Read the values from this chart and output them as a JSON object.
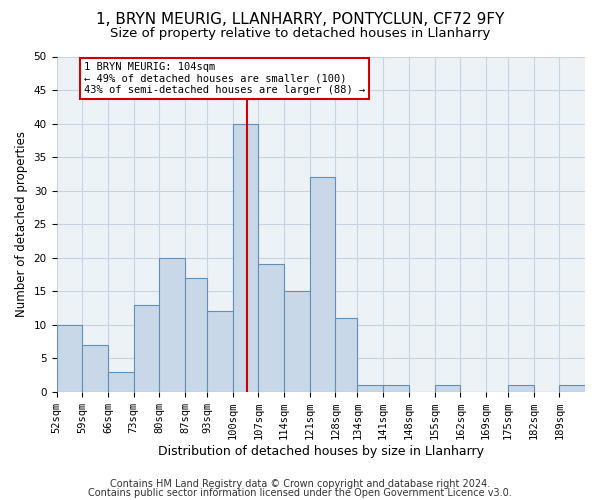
{
  "title1": "1, BRYN MEURIG, LLANHARRY, PONTYCLUN, CF72 9FY",
  "title2": "Size of property relative to detached houses in Llanharry",
  "xlabel": "Distribution of detached houses by size in Llanharry",
  "ylabel": "Number of detached properties",
  "footer1": "Contains HM Land Registry data © Crown copyright and database right 2024.",
  "footer2": "Contains public sector information licensed under the Open Government Licence v3.0.",
  "bin_edges": [
    52,
    59,
    66,
    73,
    80,
    87,
    93,
    100,
    107,
    114,
    121,
    128,
    134,
    141,
    148,
    155,
    162,
    169,
    175,
    182,
    189,
    196
  ],
  "bin_labels": [
    "52sqm",
    "59sqm",
    "66sqm",
    "73sqm",
    "80sqm",
    "87sqm",
    "93sqm",
    "100sqm",
    "107sqm",
    "114sqm",
    "121sqm",
    "128sqm",
    "134sqm",
    "141sqm",
    "148sqm",
    "155sqm",
    "162sqm",
    "169sqm",
    "175sqm",
    "182sqm",
    "189sqm"
  ],
  "values": [
    10,
    7,
    3,
    13,
    20,
    17,
    12,
    40,
    19,
    15,
    32,
    11,
    1,
    1,
    0,
    1,
    0,
    0,
    1,
    0,
    1
  ],
  "bar_color": "#c8d8e8",
  "bar_edge_color": "#6090b8",
  "vline_x_label": "100sqm",
  "property_label": "104sqm",
  "annotation_text": "1 BRYN MEURIG: 104sqm\n← 49% of detached houses are smaller (100)\n43% of semi-detached houses are larger (88) →",
  "annotation_box_color": "#ffffff",
  "annotation_box_edge": "#cc0000",
  "vline_color": "#cc0000",
  "ylim": [
    0,
    50
  ],
  "grid_color": "#c8d4e0",
  "bg_color": "#edf2f7",
  "title1_fontsize": 11,
  "title2_fontsize": 9.5,
  "ylabel_fontsize": 8.5,
  "xlabel_fontsize": 9,
  "tick_fontsize": 7.5,
  "footer_fontsize": 7
}
